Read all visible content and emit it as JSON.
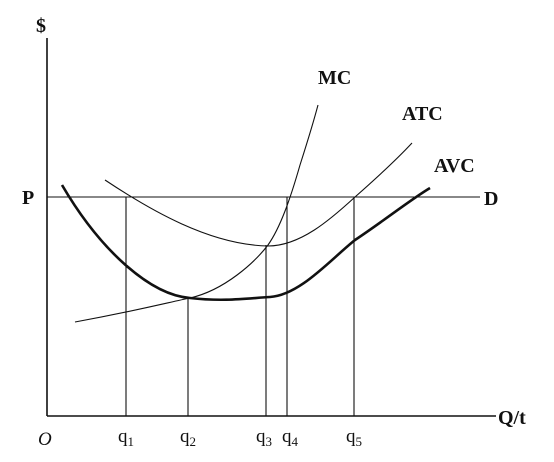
{
  "axes": {
    "y_label": "$",
    "x_label": "Q/t",
    "origin": "O"
  },
  "price": {
    "label": "P",
    "demand": "D"
  },
  "curves": {
    "mc": "MC",
    "atc": "ATC",
    "avc": "AVC"
  },
  "quantities": [
    {
      "main": "q",
      "sub": "1"
    },
    {
      "main": "q",
      "sub": "2"
    },
    {
      "main": "q",
      "sub": "3"
    },
    {
      "main": "q",
      "sub": "4"
    },
    {
      "main": "q",
      "sub": "5"
    }
  ]
}
